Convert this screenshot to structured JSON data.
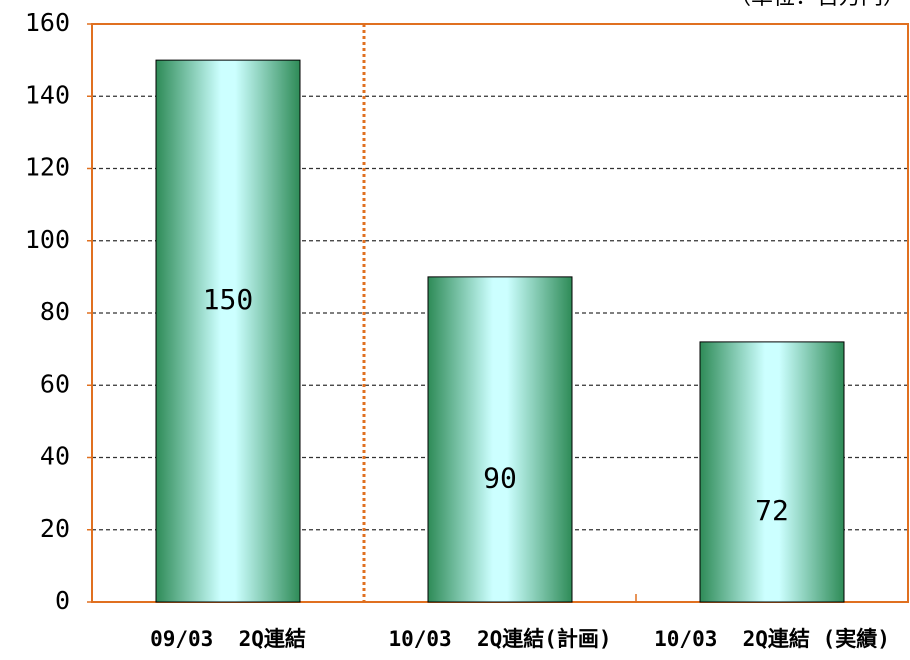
{
  "chart_data": {
    "type": "bar",
    "unit": "（単位：百万円）",
    "categories": [
      "09/03  2Q連結",
      "10/03  2Q連結(計画)",
      "10/03  2Q連結 (実績)"
    ],
    "values": [
      150,
      90,
      72
    ],
    "color": "#2e8b57",
    "ylim": [
      0,
      160
    ],
    "yticks": [
      0,
      20,
      40,
      60,
      80,
      100,
      120,
      140,
      160
    ],
    "grid": true
  }
}
